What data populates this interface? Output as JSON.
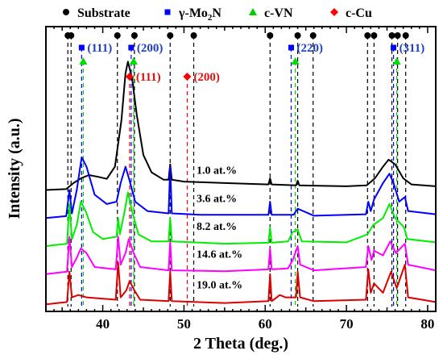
{
  "chart_data": {
    "type": "line",
    "xlabel": "2 Theta (deg.)",
    "ylabel": "Intensity (a.u.)",
    "xlim": [
      33,
      81
    ],
    "xticks": [
      40,
      50,
      60,
      70,
      80
    ],
    "legend": {
      "placement": "top",
      "entries": [
        {
          "label": "Substrate",
          "marker": "circle",
          "color": "#000000"
        },
        {
          "label": "γ-Mo",
          "sub": "2",
          "tail": "N",
          "marker": "square",
          "color": "#0000ff"
        },
        {
          "label": "c-VN",
          "marker": "triangle",
          "color": "#00cc00"
        },
        {
          "label": "c-Cu",
          "marker": "diamond",
          "color": "#ff0000"
        }
      ]
    },
    "substrate_peaks": [
      35.7,
      36.1,
      41.8,
      43.9,
      48.3,
      51.2,
      60.6,
      64.0,
      65.9,
      72.6,
      73.4,
      75.6,
      76.3,
      77.3
    ],
    "mo2n_peaks": [
      {
        "x": 37.4,
        "label": "(111)"
      },
      {
        "x": 43.5,
        "label": "(200)"
      },
      {
        "x": 63.2,
        "label": "(220)"
      },
      {
        "x": 75.8,
        "label": "(311)"
      }
    ],
    "vn_peaks": [
      37.6,
      43.8,
      63.7,
      76.2
    ],
    "cu_peaks": [
      {
        "x": 43.3,
        "label": "(111)"
      },
      {
        "x": 50.4,
        "label": "(200)"
      }
    ],
    "series": [
      {
        "name": "1.0 at.%",
        "color": "#000000",
        "baseline": 0.8,
        "points": [
          [
            33,
            0.8
          ],
          [
            35.5,
            0.82
          ],
          [
            36.4,
            0.95
          ],
          [
            37.3,
            1.05
          ],
          [
            38.3,
            1.12
          ],
          [
            39.5,
            1.08
          ],
          [
            40.5,
            1.04
          ],
          [
            41.5,
            1.3
          ],
          [
            42.3,
            2.3
          ],
          [
            42.8,
            3.3
          ],
          [
            43.1,
            3.55
          ],
          [
            43.6,
            3.2
          ],
          [
            44.2,
            2.4
          ],
          [
            45.0,
            1.55
          ],
          [
            46.0,
            1.18
          ],
          [
            47.5,
            1.02
          ],
          [
            48.1,
            1.02
          ],
          [
            48.3,
            1.35
          ],
          [
            48.5,
            1.02
          ],
          [
            50,
            0.98
          ],
          [
            55,
            0.95
          ],
          [
            60.4,
            0.92
          ],
          [
            60.6,
            1.05
          ],
          [
            60.8,
            0.92
          ],
          [
            63.8,
            0.9
          ],
          [
            64.0,
            1.0
          ],
          [
            64.2,
            0.9
          ],
          [
            70,
            0.88
          ],
          [
            72.5,
            0.9
          ],
          [
            73.5,
            1.05
          ],
          [
            74.5,
            1.3
          ],
          [
            75.2,
            1.45
          ],
          [
            76.0,
            1.35
          ],
          [
            77.0,
            1.05
          ],
          [
            78.0,
            0.92
          ],
          [
            81,
            0.88
          ]
        ]
      },
      {
        "name": "3.6 at.%",
        "color": "#0000ff",
        "baseline": 0.2,
        "points": [
          [
            33,
            0.2
          ],
          [
            35.5,
            0.24
          ],
          [
            35.9,
            0.8
          ],
          [
            36.2,
            0.3
          ],
          [
            36.8,
            0.8
          ],
          [
            37.4,
            1.5
          ],
          [
            38.0,
            1.3
          ],
          [
            39.0,
            0.7
          ],
          [
            40.5,
            0.5
          ],
          [
            41.7,
            0.55
          ],
          [
            42.2,
            0.95
          ],
          [
            42.8,
            1.3
          ],
          [
            43.3,
            1.0
          ],
          [
            44.0,
            0.55
          ],
          [
            45.5,
            0.35
          ],
          [
            48.1,
            0.3
          ],
          [
            48.3,
            1.3
          ],
          [
            48.5,
            0.3
          ],
          [
            52,
            0.27
          ],
          [
            60.4,
            0.27
          ],
          [
            60.6,
            0.55
          ],
          [
            60.8,
            0.27
          ],
          [
            63.5,
            0.27
          ],
          [
            64.0,
            0.4
          ],
          [
            66,
            0.25
          ],
          [
            72.4,
            0.28
          ],
          [
            72.7,
            0.55
          ],
          [
            73.0,
            0.35
          ],
          [
            73.4,
            0.6
          ],
          [
            74.5,
            0.95
          ],
          [
            75.3,
            1.15
          ],
          [
            75.8,
            0.95
          ],
          [
            76.5,
            0.55
          ],
          [
            77.2,
            0.65
          ],
          [
            77.6,
            0.35
          ],
          [
            81,
            0.28
          ]
        ]
      },
      {
        "name": "8.2 at.%",
        "color": "#00ee00",
        "baseline": -0.4,
        "points": [
          [
            33,
            -0.4
          ],
          [
            35.6,
            -0.35
          ],
          [
            35.9,
            0.5
          ],
          [
            36.2,
            -0.25
          ],
          [
            36.8,
            0.05
          ],
          [
            37.3,
            0.55
          ],
          [
            37.9,
            0.35
          ],
          [
            38.8,
            -0.1
          ],
          [
            40,
            -0.25
          ],
          [
            41.7,
            -0.2
          ],
          [
            41.9,
            0.2
          ],
          [
            42.1,
            -0.15
          ],
          [
            42.7,
            0.35
          ],
          [
            43.1,
            0.75
          ],
          [
            43.6,
            0.35
          ],
          [
            44.4,
            -0.15
          ],
          [
            46,
            -0.3
          ],
          [
            48.1,
            -0.3
          ],
          [
            48.3,
            0.2
          ],
          [
            48.5,
            -0.3
          ],
          [
            55,
            -0.35
          ],
          [
            60.4,
            -0.33
          ],
          [
            60.6,
            0.0
          ],
          [
            60.8,
            -0.33
          ],
          [
            62.8,
            -0.3
          ],
          [
            63.4,
            -0.1
          ],
          [
            64.0,
            -0.05
          ],
          [
            64.5,
            -0.3
          ],
          [
            70,
            -0.32
          ],
          [
            72.6,
            -0.15
          ],
          [
            73.3,
            0.05
          ],
          [
            74.5,
            0.2
          ],
          [
            75.3,
            0.5
          ],
          [
            76.0,
            0.2
          ],
          [
            77.1,
            0.0
          ],
          [
            77.5,
            -0.25
          ],
          [
            81,
            -0.32
          ]
        ]
      },
      {
        "name": "14.6 at.%",
        "color": "#ff00ff",
        "baseline": -1.0,
        "points": [
          [
            33,
            -1.0
          ],
          [
            35.6,
            -0.95
          ],
          [
            35.9,
            -0.2
          ],
          [
            36.2,
            -0.85
          ],
          [
            36.8,
            -0.65
          ],
          [
            37.3,
            -0.45
          ],
          [
            38.0,
            -0.55
          ],
          [
            39.0,
            -0.85
          ],
          [
            41.6,
            -0.9
          ],
          [
            41.9,
            -0.2
          ],
          [
            42.2,
            -0.8
          ],
          [
            42.8,
            -0.55
          ],
          [
            43.2,
            -0.25
          ],
          [
            43.8,
            -0.55
          ],
          [
            44.6,
            -0.85
          ],
          [
            48.1,
            -0.92
          ],
          [
            48.3,
            -0.3
          ],
          [
            48.5,
            -0.92
          ],
          [
            55,
            -0.94
          ],
          [
            60.4,
            -0.9
          ],
          [
            60.6,
            -0.45
          ],
          [
            60.8,
            -0.9
          ],
          [
            62.8,
            -0.88
          ],
          [
            63.4,
            -0.7
          ],
          [
            64.0,
            -0.4
          ],
          [
            64.3,
            -0.8
          ],
          [
            66,
            -0.92
          ],
          [
            72.4,
            -0.85
          ],
          [
            72.7,
            -0.4
          ],
          [
            73.1,
            -0.7
          ],
          [
            73.4,
            -0.5
          ],
          [
            74.5,
            -0.6
          ],
          [
            75.4,
            -0.3
          ],
          [
            76.1,
            -0.55
          ],
          [
            77.2,
            -0.35
          ],
          [
            77.6,
            -0.8
          ],
          [
            81,
            -0.92
          ]
        ]
      },
      {
        "name": "19.0 at.%",
        "color": "#dd0000",
        "baseline": -1.65,
        "points": [
          [
            33,
            -1.65
          ],
          [
            35.6,
            -1.6
          ],
          [
            35.9,
            -0.95
          ],
          [
            36.2,
            -1.5
          ],
          [
            37.0,
            -1.45
          ],
          [
            38.0,
            -1.5
          ],
          [
            41.6,
            -1.55
          ],
          [
            41.9,
            -0.75
          ],
          [
            42.2,
            -1.5
          ],
          [
            42.9,
            -1.35
          ],
          [
            43.3,
            -1.15
          ],
          [
            43.9,
            -1.35
          ],
          [
            44.6,
            -1.55
          ],
          [
            48.1,
            -1.58
          ],
          [
            48.3,
            -0.95
          ],
          [
            48.5,
            -1.58
          ],
          [
            55,
            -1.62
          ],
          [
            60.4,
            -1.58
          ],
          [
            60.6,
            -1.0
          ],
          [
            60.8,
            -1.58
          ],
          [
            61.8,
            -1.45
          ],
          [
            62.5,
            -1.5
          ],
          [
            63.8,
            -1.5
          ],
          [
            64.0,
            -0.95
          ],
          [
            64.3,
            -1.5
          ],
          [
            66,
            -1.58
          ],
          [
            72.4,
            -1.55
          ],
          [
            72.7,
            -0.9
          ],
          [
            73.0,
            -1.4
          ],
          [
            73.4,
            -1.2
          ],
          [
            74.5,
            -1.4
          ],
          [
            75.5,
            -0.95
          ],
          [
            76.2,
            -1.3
          ],
          [
            77.2,
            -0.8
          ],
          [
            77.6,
            -1.5
          ],
          [
            81,
            -1.6
          ]
        ]
      }
    ],
    "ylim": [
      -1.8,
      4.3
    ],
    "grid": false
  }
}
